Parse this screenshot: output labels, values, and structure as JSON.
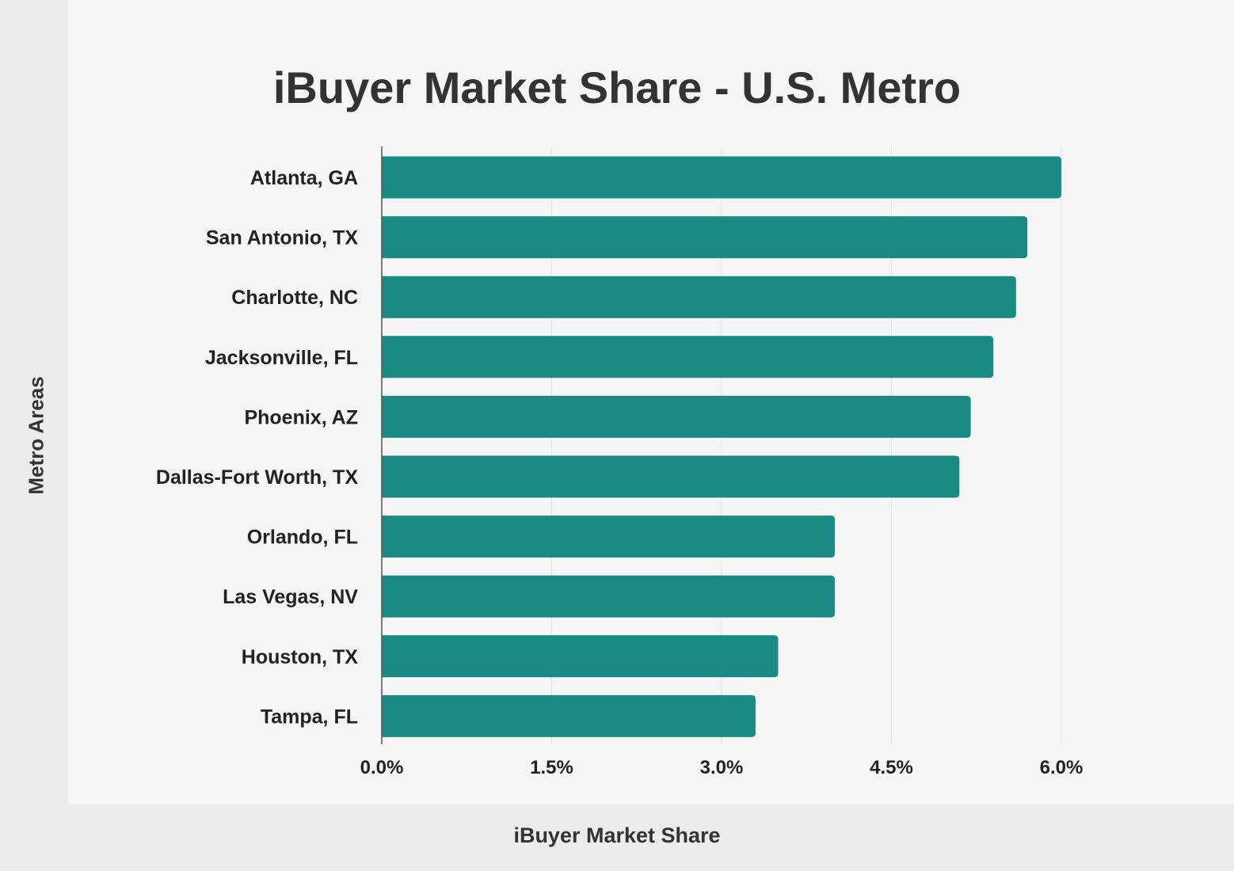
{
  "colors": {
    "bar": "#1b8a83",
    "background": "#f5f5f6",
    "band": "#ebebeb",
    "grid": "#e3e3e3",
    "axis": "#555555"
  },
  "chart_data": {
    "type": "bar",
    "orientation": "horizontal",
    "title": "iBuyer Market Share - U.S. Metro",
    "xlabel": "iBuyer Market Share",
    "ylabel": "Metro Areas",
    "categories": [
      "Atlanta, GA",
      "San Antonio, TX",
      "Charlotte, NC",
      "Jacksonville, FL",
      "Phoenix, AZ",
      "Dallas-Fort Worth, TX",
      "Orlando, FL",
      "Las Vegas, NV",
      "Houston, TX",
      "Tampa, FL"
    ],
    "values": [
      6.0,
      5.7,
      5.6,
      5.4,
      5.2,
      5.1,
      4.0,
      4.0,
      3.5,
      3.3
    ],
    "unit": "%",
    "xlim": [
      0,
      6.0
    ],
    "xticks": [
      0,
      1.5,
      3.0,
      4.5,
      6.0
    ],
    "xtick_labels": [
      "0.0%",
      "1.5%",
      "3.0%",
      "4.5%",
      "6.0%"
    ],
    "grid": true,
    "legend": "none"
  }
}
